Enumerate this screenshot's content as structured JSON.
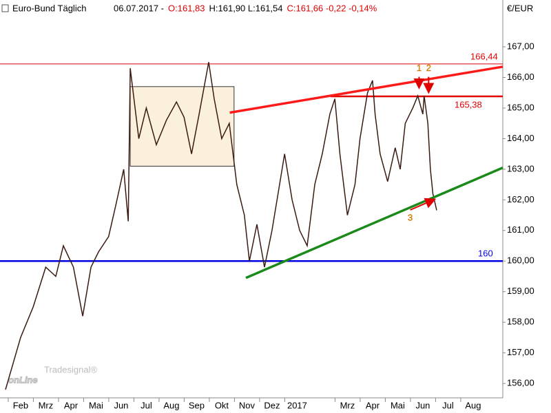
{
  "chart_data": {
    "type": "line",
    "title": "Euro-Bund Täglich",
    "header": [
      {
        "text": "06.07.2017 -",
        "color": "#000000"
      },
      {
        "text": "O:161,83",
        "color": "#e00000"
      },
      {
        "text": "H:161,90 L:161,54",
        "color": "#000000"
      },
      {
        "text": "C:161,66 -0,22 -0,14%",
        "color": "#e00000"
      }
    ],
    "y_unit": "€/EUR",
    "watermark": [
      "onLine",
      "Tradesignal®"
    ],
    "xlim": [
      0.68,
      20.68
    ],
    "xticks": [
      {
        "value": 1.5,
        "label": "Feb"
      },
      {
        "value": 2.5,
        "label": "Mrz"
      },
      {
        "value": 3.5,
        "label": "Apr"
      },
      {
        "value": 4.5,
        "label": "Mai"
      },
      {
        "value": 5.5,
        "label": "Jun"
      },
      {
        "value": 6.5,
        "label": "Jul"
      },
      {
        "value": 7.5,
        "label": "Aug"
      },
      {
        "value": 8.5,
        "label": "Sep"
      },
      {
        "value": 9.5,
        "label": "Okt"
      },
      {
        "value": 10.5,
        "label": "Nov"
      },
      {
        "value": 11.5,
        "label": "Dez"
      },
      {
        "value": 12.5,
        "label": "2017"
      },
      {
        "value": 14.5,
        "label": "Mrz"
      },
      {
        "value": 15.5,
        "label": "Apr"
      },
      {
        "value": 16.5,
        "label": "Mai"
      },
      {
        "value": 17.5,
        "label": "Jun"
      },
      {
        "value": 18.5,
        "label": "Jul"
      },
      {
        "value": 19.5,
        "label": "Aug"
      }
    ],
    "ylim": [
      155.53,
      168.53
    ],
    "yticks": [
      {
        "value": 156,
        "label": "156,00"
      },
      {
        "value": 157,
        "label": "157,00"
      },
      {
        "value": 158,
        "label": "158,00"
      },
      {
        "value": 159,
        "label": "159,00"
      },
      {
        "value": 160,
        "label": "160,00"
      },
      {
        "value": 161,
        "label": "161,00"
      },
      {
        "value": 162,
        "label": "162,00"
      },
      {
        "value": 163,
        "label": "163,00"
      },
      {
        "value": 164,
        "label": "164,00"
      },
      {
        "value": 165,
        "label": "165,00"
      },
      {
        "value": 166,
        "label": "166,00"
      },
      {
        "value": 167,
        "label": "167,00"
      }
    ],
    "series": [
      {
        "color": "#3a1a10",
        "x": [
          0.9,
          1.5,
          2.0,
          2.5,
          2.9,
          3.2,
          3.6,
          3.97,
          4.3,
          4.6,
          5.0,
          5.28,
          5.6,
          5.78,
          5.86,
          6.2,
          6.5,
          6.9,
          7.3,
          7.7,
          8.0,
          8.3,
          8.6,
          8.98,
          9.2,
          9.5,
          9.8,
          10.1,
          10.4,
          10.6,
          10.9,
          11.2,
          11.5,
          11.8,
          12.0,
          12.3,
          12.6,
          12.9,
          13.2,
          13.5,
          13.8,
          14.0,
          14.2,
          14.5,
          14.8,
          15.0,
          15.3,
          15.5,
          15.6,
          15.8,
          16.1,
          16.4,
          16.6,
          16.8,
          17.1,
          17.3,
          17.5,
          17.55,
          17.7,
          17.8,
          17.9,
          18.05
        ],
        "values": [
          155.8,
          157.5,
          158.5,
          159.8,
          159.5,
          160.5,
          159.8,
          158.2,
          159.8,
          160.3,
          160.8,
          161.8,
          163.0,
          161.3,
          166.3,
          164.0,
          165.0,
          163.8,
          164.6,
          165.2,
          164.7,
          163.5,
          164.8,
          166.5,
          165.3,
          164.0,
          164.5,
          162.5,
          161.5,
          160.0,
          161.2,
          159.8,
          161.0,
          162.5,
          163.5,
          162.0,
          161.0,
          160.5,
          162.5,
          163.5,
          164.8,
          165.3,
          163.5,
          161.5,
          162.5,
          164.0,
          165.5,
          165.9,
          164.8,
          163.5,
          162.6,
          163.7,
          163.0,
          164.5,
          165.0,
          165.4,
          164.8,
          165.4,
          164.5,
          163.0,
          162.2,
          161.66
        ]
      }
    ],
    "levels": [
      {
        "value": 166.44,
        "label": "166,44",
        "color": "#e00000"
      },
      {
        "value": 165.38,
        "label": "165,38",
        "color": "#e00000"
      },
      {
        "value": 160,
        "label": "160",
        "color": "#0000e0"
      }
    ],
    "box": {
      "x": [
        5.86,
        9.99
      ],
      "y": [
        163.1,
        165.7
      ]
    },
    "trendlines": [
      {
        "x": [
          9.82,
          20.68
        ],
        "values": [
          164.85,
          166.35
        ],
        "color": "#ff1a1a"
      },
      {
        "x": [
          10.46,
          20.68
        ],
        "values": [
          159.45,
          163.05
        ],
        "color": "#1a8a1a"
      }
    ],
    "markers": [
      {
        "label": "1",
        "x": 17.35,
        "values": [
          166.2,
          165.7
        ]
      },
      {
        "label": "2",
        "x": 17.73,
        "values": [
          166.2,
          165.55
        ]
      },
      {
        "label": "3",
        "x": 17.6,
        "values": [
          161.4,
          162.0
        ]
      }
    ]
  }
}
